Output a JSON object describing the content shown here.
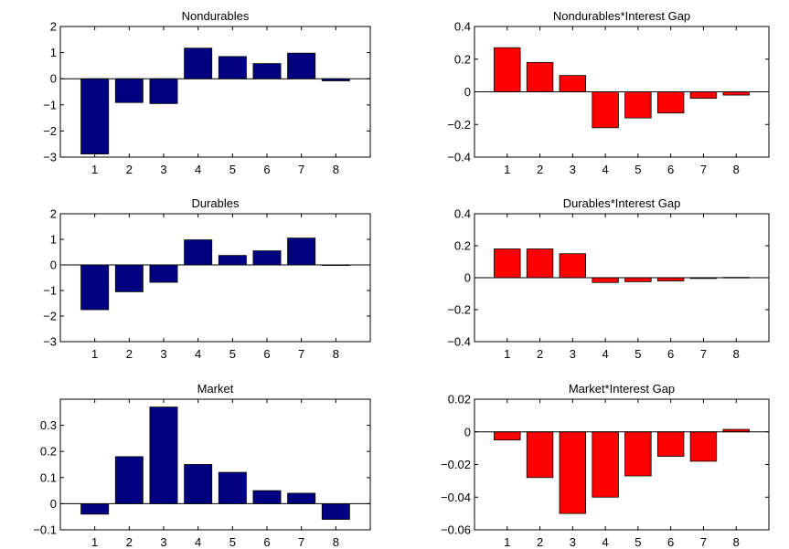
{
  "chart_data": [
    {
      "type": "bar",
      "title": "Nondurables",
      "categories": [
        "1",
        "2",
        "3",
        "4",
        "5",
        "6",
        "7",
        "8"
      ],
      "values": [
        -2.88,
        -0.91,
        -0.95,
        1.17,
        0.85,
        0.58,
        0.98,
        -0.08
      ],
      "ylim": [
        -3,
        2
      ],
      "yticks": [
        "−3",
        "−2",
        "−1",
        "0",
        "1",
        "2"
      ],
      "ytick_values": [
        -3,
        -2,
        -1,
        0,
        1,
        2
      ],
      "color": "#000080",
      "grid": false
    },
    {
      "type": "bar",
      "title": "Nondurables*Interest Gap",
      "categories": [
        "1",
        "2",
        "3",
        "4",
        "5",
        "6",
        "7",
        "8"
      ],
      "values": [
        0.27,
        0.18,
        0.1,
        -0.22,
        -0.16,
        -0.13,
        -0.04,
        -0.02
      ],
      "ylim": [
        -0.4,
        0.4
      ],
      "yticks": [
        "−0.4",
        "−0.2",
        "0",
        "0.2",
        "0.4"
      ],
      "ytick_values": [
        -0.4,
        -0.2,
        0,
        0.2,
        0.4
      ],
      "color": "#ff0000",
      "grid": false
    },
    {
      "type": "bar",
      "title": "Durables",
      "categories": [
        "1",
        "2",
        "3",
        "4",
        "5",
        "6",
        "7",
        "8"
      ],
      "values": [
        -1.75,
        -1.05,
        -0.68,
        0.98,
        0.37,
        0.55,
        1.05,
        0.0
      ],
      "ylim": [
        -3,
        2
      ],
      "yticks": [
        "−3",
        "−2",
        "−1",
        "0",
        "1",
        "2"
      ],
      "ytick_values": [
        -3,
        -2,
        -1,
        0,
        1,
        2
      ],
      "color": "#000080",
      "grid": false
    },
    {
      "type": "bar",
      "title": "Durables*Interest Gap",
      "categories": [
        "1",
        "2",
        "3",
        "4",
        "5",
        "6",
        "7",
        "8"
      ],
      "values": [
        0.18,
        0.18,
        0.15,
        -0.03,
        -0.025,
        -0.02,
        -0.005,
        0.002
      ],
      "ylim": [
        -0.4,
        0.4
      ],
      "yticks": [
        "−0.4",
        "−0.2",
        "0",
        "0.2",
        "0.4"
      ],
      "ytick_values": [
        -0.4,
        -0.2,
        0,
        0.2,
        0.4
      ],
      "color": "#ff0000",
      "grid": false
    },
    {
      "type": "bar",
      "title": "Market",
      "categories": [
        "1",
        "2",
        "3",
        "4",
        "5",
        "6",
        "7",
        "8"
      ],
      "values": [
        -0.04,
        0.18,
        0.37,
        0.15,
        0.12,
        0.05,
        0.04,
        -0.06
      ],
      "ylim": [
        -0.1,
        0.4
      ],
      "yticks": [
        "−0.1",
        "0",
        "0.1",
        "0.2",
        "0.3"
      ],
      "ytick_values": [
        -0.1,
        0,
        0.1,
        0.2,
        0.3
      ],
      "color": "#000080",
      "grid": false
    },
    {
      "type": "bar",
      "title": "Market*Interest Gap",
      "categories": [
        "1",
        "2",
        "3",
        "4",
        "5",
        "6",
        "7",
        "8"
      ],
      "values": [
        -0.005,
        -0.028,
        -0.05,
        -0.04,
        -0.027,
        -0.015,
        -0.018,
        0.0015
      ],
      "ylim": [
        -0.06,
        0.02
      ],
      "yticks": [
        "−0.06",
        "−0.04",
        "−0.02",
        "0",
        "0.02"
      ],
      "ytick_values": [
        -0.06,
        -0.04,
        -0.02,
        0,
        0.02
      ],
      "color": "#ff0000",
      "grid": false
    }
  ]
}
